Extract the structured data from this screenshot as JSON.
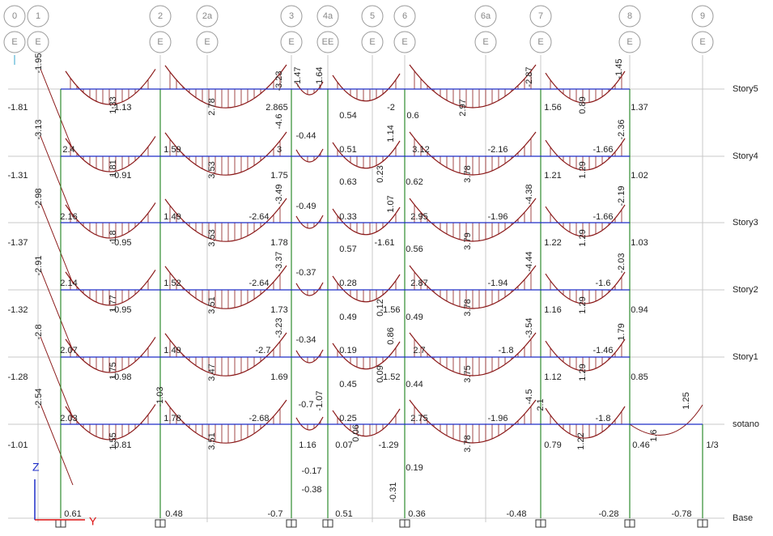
{
  "grid_bubbles": [
    {
      "label": "0",
      "story": "E"
    },
    {
      "label": "1",
      "story": "E"
    },
    {
      "label": "2",
      "story": "E"
    },
    {
      "label": "2a",
      "story": "E"
    },
    {
      "label": "3",
      "story": "E"
    },
    {
      "label": "4a",
      "story": "EE"
    },
    {
      "label": "5",
      "story": "E"
    },
    {
      "label": "6",
      "story": "E"
    },
    {
      "label": "6a",
      "story": "E"
    },
    {
      "label": "7",
      "story": "E"
    },
    {
      "label": "8",
      "story": "E"
    },
    {
      "label": "9",
      "story": "E"
    }
  ],
  "stories": [
    "Story5",
    "Story4",
    "Story3",
    "Story2",
    "Story1",
    "sotano",
    "Base"
  ],
  "axes": {
    "z": "Z",
    "y": "Y"
  },
  "moment_labels": [
    "-1.95",
    "-3.23",
    "-1.47",
    "-1.64",
    "-2.87",
    "-1.45",
    "-1.81",
    "1.33",
    "-1.13",
    "2.78",
    "2.865",
    "0.54",
    "-2",
    "0.6",
    "2.97",
    "1.56",
    "0.89",
    "1.37",
    "-3.13",
    "-4.6",
    "-0.44",
    "1.14",
    "-2.36",
    "2.4",
    "1.59",
    "3",
    "0.51",
    "3.12",
    "-2.16",
    "-1.66",
    "-1.31",
    "1.81",
    "-0.91",
    "3.53",
    "1.75",
    "0.63",
    "0.23",
    "0.62",
    "3.78",
    "1.21",
    "1.29",
    "1.02",
    "-2.98",
    "-3.49",
    "-0.49",
    "1.07",
    "-2.19",
    "-4.38",
    "2.16",
    "1.49",
    "-2.64",
    "0.33",
    "2.95",
    "-1.96",
    "-1.66",
    "-1.37",
    "1.8",
    "-0.95",
    "3.53",
    "1.78",
    "0.57",
    "-1.61",
    "0.56",
    "3.79",
    "1.22",
    "1.29",
    "1.03",
    "-2.91",
    "-3.37",
    "-0.37",
    "-2.03",
    "-4.44",
    "2.14",
    "1.52",
    "-2.64",
    "0.28",
    "2.87",
    "-1.94",
    "-1.6",
    "-1.32",
    "1.77",
    "-0.95",
    "3.51",
    "1.73",
    "0.49",
    "0.12",
    "-1.56",
    "0.49",
    "3.78",
    "1.16",
    "1.29",
    "0.94",
    "-2.8",
    "-3.23",
    "-0.34",
    "0.86",
    "-3.54",
    "1.79",
    "2.07",
    "1.49",
    "-2.7",
    "0.19",
    "2.7",
    "-1.8",
    "-1.46",
    "-1.28",
    "1.75",
    "-0.98",
    "3.47",
    "1.69",
    "0.45",
    "0.09",
    "-1.52",
    "0.44",
    "3.75",
    "1.12",
    "1.29",
    "0.85",
    "-2.54",
    "-1.03",
    "-0.7",
    "-1.07",
    "-4.5",
    "2.1",
    "1.25",
    "2.03",
    "1.78",
    "-2.68",
    "0.25",
    "2.75",
    "-1.96",
    "-1.8",
    "-1.01",
    "1.55",
    "-0.81",
    "3.51",
    "1.16",
    "0.07",
    "0.06",
    "-1.29",
    "3.78",
    "0.79",
    "1.22",
    "0.46",
    "1.6",
    "1/3",
    "-0.17",
    "0.19",
    "-0.38",
    "-0.31",
    "0.61",
    "0.48",
    "-0.7",
    "0.51",
    "0.36",
    "-0.48",
    "-0.28",
    "-0.78"
  ]
}
